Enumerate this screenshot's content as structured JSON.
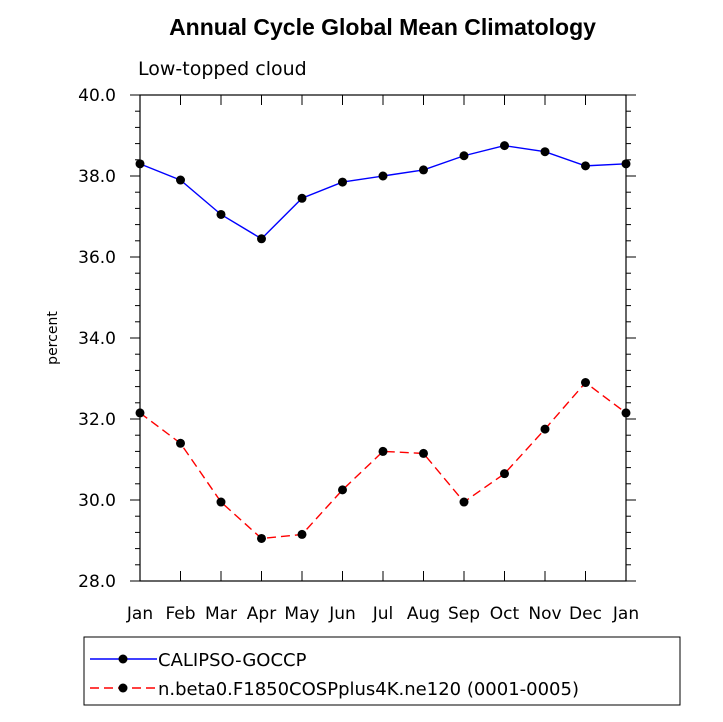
{
  "chart_data": {
    "type": "line",
    "title": "Annual Cycle Global Mean Climatology",
    "subtitle": "Low-topped cloud",
    "ylabel": "percent",
    "xlabel": "",
    "ylim": [
      28.0,
      40.0
    ],
    "yticks": [
      "28.0",
      "30.0",
      "32.0",
      "34.0",
      "36.0",
      "38.0",
      "40.0"
    ],
    "categories": [
      "Jan",
      "Feb",
      "Mar",
      "Apr",
      "May",
      "Jun",
      "Jul",
      "Aug",
      "Sep",
      "Oct",
      "Nov",
      "Dec",
      "Jan"
    ],
    "series": [
      {
        "name": "CALIPSO-GOCCP",
        "color": "#0000ff",
        "dash": "solid",
        "marker": "filled-circle",
        "values": [
          38.3,
          37.9,
          37.05,
          36.45,
          37.45,
          37.85,
          38.0,
          38.15,
          38.5,
          38.75,
          38.6,
          38.25,
          38.3
        ]
      },
      {
        "name": "n.beta0.F1850COSPplus4K.ne120 (0001-0005)",
        "color": "#ff0000",
        "dash": "dashed",
        "marker": "filled-circle",
        "values": [
          32.15,
          31.4,
          29.95,
          29.05,
          29.15,
          30.25,
          31.2,
          31.15,
          29.95,
          30.65,
          31.75,
          32.9,
          32.15
        ]
      }
    ],
    "grid": false,
    "legend": "bottom"
  }
}
